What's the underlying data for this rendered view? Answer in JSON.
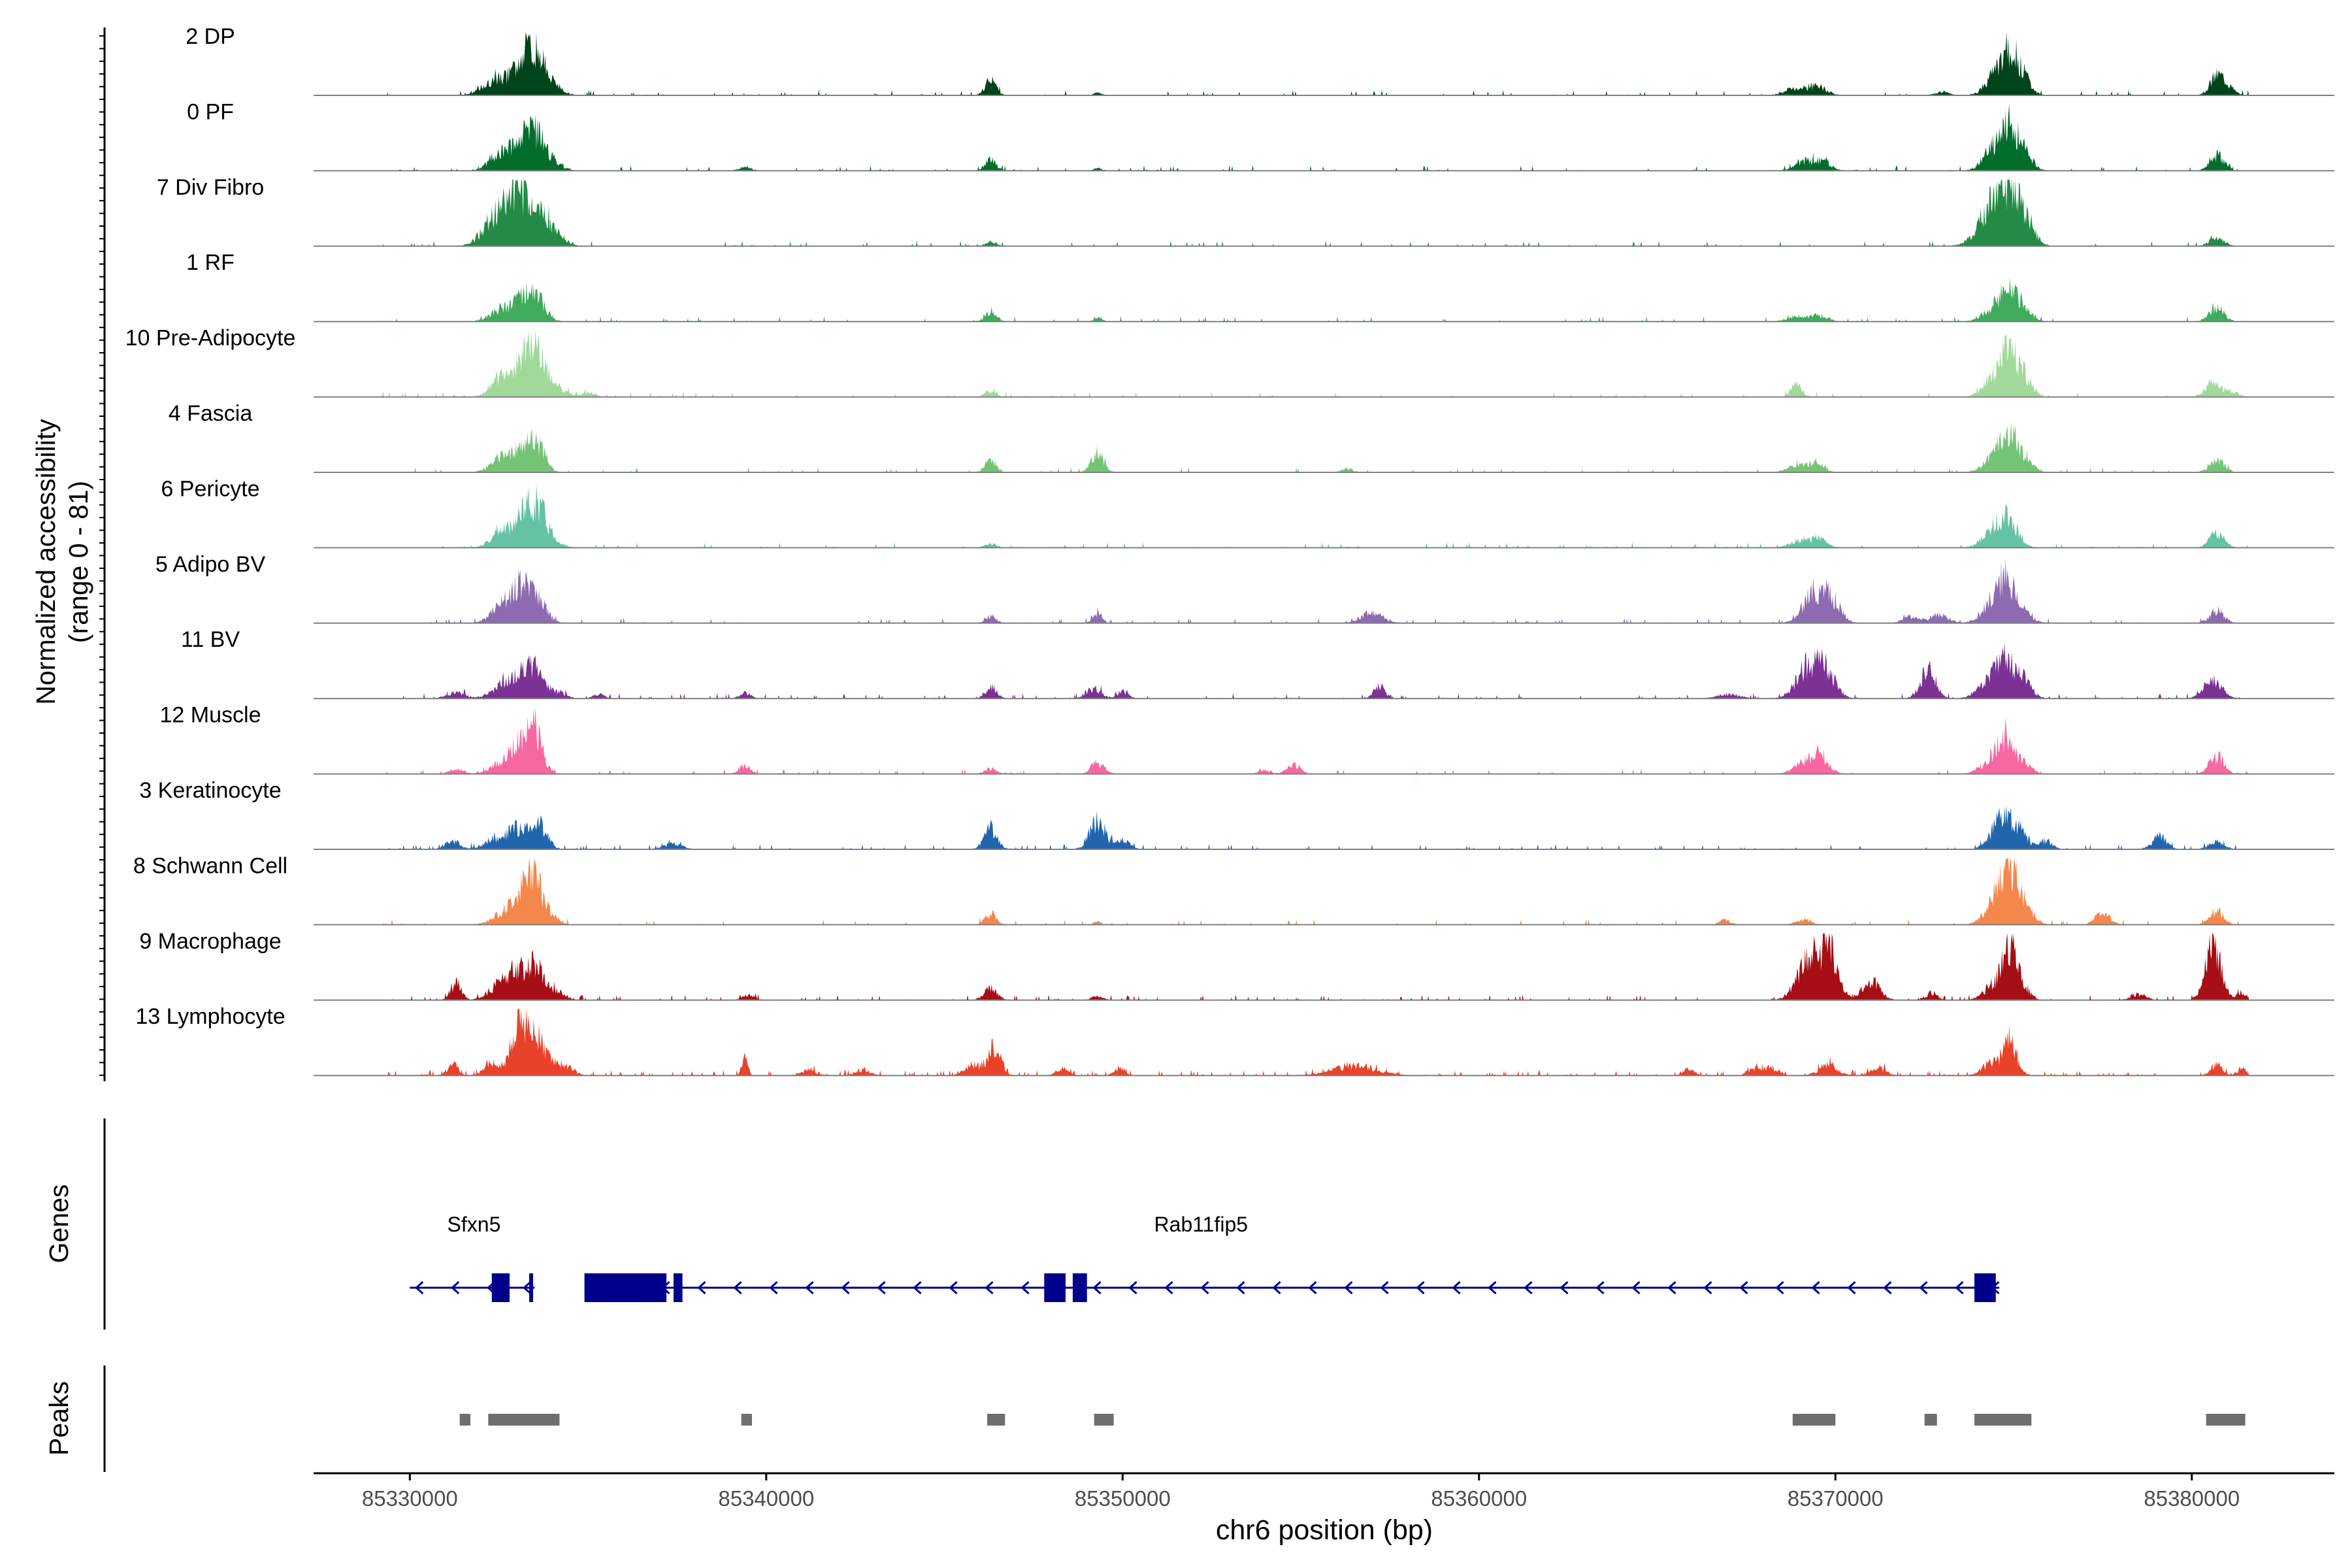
{
  "chart_data": {
    "type": "area",
    "title": "",
    "ylabel_line1": "Normalized accessibility",
    "ylabel_line2": "(range 0 - 81)",
    "ylim": [
      0,
      81
    ],
    "xlabel": "chr6 position (bp)",
    "xlim": [
      85327300,
      85384000
    ],
    "xticks": [
      85330000,
      85340000,
      85350000,
      85360000,
      85370000,
      85380000
    ],
    "xtick_labels": [
      "85330000",
      "85340000",
      "85350000",
      "85360000",
      "85370000",
      "85380000"
    ],
    "tracks": [
      {
        "label": "2 DP",
        "color": "#00441b",
        "noise": 0.04,
        "seed": 11,
        "peaks": [
          [
            85332400,
            350,
            22
          ],
          [
            85333100,
            260,
            40
          ],
          [
            85333500,
            250,
            48
          ],
          [
            85333900,
            300,
            18
          ],
          [
            85346300,
            150,
            22
          ],
          [
            85349300,
            100,
            4
          ],
          [
            85368900,
            300,
            10
          ],
          [
            85369500,
            250,
            12
          ],
          [
            85373000,
            200,
            4
          ],
          [
            85374500,
            280,
            28
          ],
          [
            85374900,
            220,
            55
          ],
          [
            85375300,
            200,
            22
          ],
          [
            85380700,
            200,
            25
          ],
          [
            85381000,
            200,
            10
          ]
        ]
      },
      {
        "label": "0 PF",
        "color": "#006d2c",
        "noise": 0.05,
        "seed": 12,
        "peaks": [
          [
            85332600,
            300,
            30
          ],
          [
            85333200,
            220,
            45
          ],
          [
            85333600,
            230,
            42
          ],
          [
            85334000,
            250,
            12
          ],
          [
            85339400,
            150,
            6
          ],
          [
            85346300,
            150,
            16
          ],
          [
            85349300,
            100,
            4
          ],
          [
            85369200,
            300,
            14
          ],
          [
            85369700,
            200,
            10
          ],
          [
            85374500,
            300,
            35
          ],
          [
            85374900,
            220,
            48
          ],
          [
            85375300,
            220,
            25
          ],
          [
            85380700,
            200,
            22
          ]
        ]
      },
      {
        "label": "7 Div Fibro",
        "color": "#238b45",
        "noise": 0.06,
        "seed": 13,
        "peaks": [
          [
            85332400,
            350,
            40
          ],
          [
            85333000,
            280,
            70
          ],
          [
            85333600,
            300,
            45
          ],
          [
            85334100,
            250,
            15
          ],
          [
            85346300,
            150,
            6
          ],
          [
            85374300,
            350,
            40
          ],
          [
            85374800,
            300,
            75
          ],
          [
            85375300,
            260,
            35
          ],
          [
            85380700,
            200,
            12
          ]
        ]
      },
      {
        "label": "1 RF",
        "color": "#41ab5d",
        "noise": 0.05,
        "seed": 14,
        "peaks": [
          [
            85332600,
            300,
            20
          ],
          [
            85333200,
            220,
            32
          ],
          [
            85333600,
            230,
            30
          ],
          [
            85346300,
            150,
            14
          ],
          [
            85349300,
            100,
            7
          ],
          [
            85369000,
            300,
            8
          ],
          [
            85369600,
            200,
            8
          ],
          [
            85374500,
            300,
            22
          ],
          [
            85374900,
            220,
            38
          ],
          [
            85375300,
            220,
            18
          ],
          [
            85380700,
            200,
            20
          ]
        ]
      },
      {
        "label": "10 Pre-Adipocyte",
        "color": "#a1d99b",
        "noise": 0.05,
        "seed": 15,
        "peaks": [
          [
            85332600,
            300,
            28
          ],
          [
            85333200,
            250,
            45
          ],
          [
            85333600,
            230,
            62
          ],
          [
            85334100,
            250,
            14
          ],
          [
            85335000,
            200,
            6
          ],
          [
            85346300,
            150,
            9
          ],
          [
            85368900,
            150,
            18
          ],
          [
            85374500,
            300,
            30
          ],
          [
            85374900,
            230,
            50
          ],
          [
            85375300,
            220,
            25
          ],
          [
            85380600,
            200,
            22
          ],
          [
            85381100,
            180,
            8
          ]
        ]
      },
      {
        "label": "4 Fascia",
        "color": "#74c476",
        "noise": 0.05,
        "seed": 16,
        "peaks": [
          [
            85332600,
            300,
            22
          ],
          [
            85333200,
            220,
            36
          ],
          [
            85333600,
            230,
            32
          ],
          [
            85346300,
            150,
            18
          ],
          [
            85349300,
            170,
            28
          ],
          [
            85356300,
            150,
            5
          ],
          [
            85369000,
            300,
            10
          ],
          [
            85369500,
            200,
            12
          ],
          [
            85374500,
            300,
            25
          ],
          [
            85374900,
            220,
            42
          ],
          [
            85375300,
            220,
            20
          ],
          [
            85380700,
            200,
            18
          ]
        ]
      },
      {
        "label": "6 Pericyte",
        "color": "#66c2a4",
        "noise": 0.04,
        "seed": 17,
        "peaks": [
          [
            85332600,
            300,
            24
          ],
          [
            85333200,
            230,
            42
          ],
          [
            85333600,
            230,
            55
          ],
          [
            85334000,
            250,
            10
          ],
          [
            85346300,
            150,
            6
          ],
          [
            85369100,
            300,
            12
          ],
          [
            85369600,
            200,
            10
          ],
          [
            85374500,
            320,
            28
          ],
          [
            85374900,
            250,
            32
          ],
          [
            85380700,
            200,
            22
          ]
        ]
      },
      {
        "label": "5 Adipo BV",
        "color": "#8c6bb1",
        "noise": 0.05,
        "seed": 18,
        "peaks": [
          [
            85332600,
            300,
            25
          ],
          [
            85333100,
            250,
            45
          ],
          [
            85333600,
            240,
            34
          ],
          [
            85346300,
            150,
            9
          ],
          [
            85349300,
            130,
            12
          ],
          [
            85357000,
            300,
            15
          ],
          [
            85369400,
            300,
            42
          ],
          [
            85369900,
            250,
            30
          ],
          [
            85372100,
            200,
            10
          ],
          [
            85372900,
            250,
            12
          ],
          [
            85374400,
            300,
            25
          ],
          [
            85374800,
            250,
            55
          ],
          [
            85375300,
            220,
            15
          ],
          [
            85380700,
            200,
            18
          ]
        ]
      },
      {
        "label": "11 BV",
        "color": "#7b3294",
        "noise": 0.08,
        "seed": 19,
        "peaks": [
          [
            85331300,
            250,
            8
          ],
          [
            85332600,
            300,
            20
          ],
          [
            85333200,
            250,
            35
          ],
          [
            85333600,
            240,
            30
          ],
          [
            85334200,
            200,
            8
          ],
          [
            85335300,
            150,
            6
          ],
          [
            85339400,
            150,
            8
          ],
          [
            85346300,
            150,
            18
          ],
          [
            85349200,
            200,
            15
          ],
          [
            85350000,
            150,
            10
          ],
          [
            85357200,
            150,
            18
          ],
          [
            85367000,
            300,
            6
          ],
          [
            85369300,
            350,
            50
          ],
          [
            85369800,
            250,
            25
          ],
          [
            85372600,
            200,
            45
          ],
          [
            85374300,
            300,
            25
          ],
          [
            85374800,
            250,
            50
          ],
          [
            85375300,
            220,
            22
          ],
          [
            85380600,
            250,
            25
          ]
        ]
      },
      {
        "label": "12 Muscle",
        "color": "#f768a1",
        "noise": 0.05,
        "seed": 20,
        "peaks": [
          [
            85331300,
            200,
            6
          ],
          [
            85332600,
            300,
            16
          ],
          [
            85333100,
            250,
            35
          ],
          [
            85333500,
            220,
            62
          ],
          [
            85339400,
            150,
            12
          ],
          [
            85346300,
            150,
            8
          ],
          [
            85349300,
            170,
            18
          ],
          [
            85354000,
            150,
            6
          ],
          [
            85354800,
            180,
            14
          ],
          [
            85369200,
            300,
            18
          ],
          [
            85369600,
            220,
            22
          ],
          [
            85374400,
            300,
            20
          ],
          [
            85374800,
            230,
            45
          ],
          [
            85375300,
            200,
            15
          ],
          [
            85380700,
            200,
            25
          ]
        ]
      },
      {
        "label": "3 Keratinocyte",
        "color": "#2166ac",
        "noise": 0.07,
        "seed": 21,
        "peaks": [
          [
            85331200,
            200,
            12
          ],
          [
            85332400,
            300,
            15
          ],
          [
            85333000,
            220,
            30
          ],
          [
            85333600,
            230,
            38
          ],
          [
            85337400,
            250,
            8
          ],
          [
            85346300,
            180,
            30
          ],
          [
            85349300,
            220,
            40
          ],
          [
            85350000,
            200,
            12
          ],
          [
            85374700,
            300,
            45
          ],
          [
            85375200,
            220,
            20
          ],
          [
            85375900,
            180,
            12
          ],
          [
            85379100,
            200,
            18
          ],
          [
            85380700,
            200,
            12
          ]
        ]
      },
      {
        "label": "8 Schwann Cell",
        "color": "#f4874b",
        "noise": 0.04,
        "seed": 22,
        "peaks": [
          [
            85332600,
            300,
            15
          ],
          [
            85333100,
            250,
            35
          ],
          [
            85333500,
            230,
            62
          ],
          [
            85334000,
            200,
            12
          ],
          [
            85346300,
            150,
            16
          ],
          [
            85349300,
            100,
            4
          ],
          [
            85366900,
            150,
            7
          ],
          [
            85369100,
            200,
            8
          ],
          [
            85374500,
            300,
            30
          ],
          [
            85374900,
            250,
            75
          ],
          [
            85375400,
            200,
            18
          ],
          [
            85377500,
            200,
            16
          ],
          [
            85380700,
            200,
            18
          ]
        ]
      },
      {
        "label": "9 Macrophage",
        "color": "#a50f15",
        "noise": 0.1,
        "seed": 23,
        "peaks": [
          [
            85331300,
            150,
            25
          ],
          [
            85332500,
            300,
            20
          ],
          [
            85333000,
            250,
            35
          ],
          [
            85333500,
            240,
            48
          ],
          [
            85334100,
            250,
            12
          ],
          [
            85339500,
            150,
            8
          ],
          [
            85346300,
            180,
            18
          ],
          [
            85349300,
            150,
            6
          ],
          [
            85369200,
            300,
            55
          ],
          [
            85369800,
            250,
            75
          ],
          [
            85371000,
            250,
            25
          ],
          [
            85372700,
            150,
            10
          ],
          [
            85374400,
            250,
            20
          ],
          [
            85374900,
            200,
            80
          ],
          [
            85375300,
            180,
            15
          ],
          [
            85378500,
            200,
            8
          ],
          [
            85380600,
            220,
            78
          ],
          [
            85381400,
            150,
            10
          ]
        ]
      },
      {
        "label": "13 Lymphocyte",
        "color": "#e8432a",
        "noise": 0.12,
        "seed": 24,
        "peaks": [
          [
            85331200,
            150,
            16
          ],
          [
            85332300,
            200,
            20
          ],
          [
            85333100,
            240,
            81
          ],
          [
            85333600,
            260,
            45
          ],
          [
            85334300,
            250,
            15
          ],
          [
            85339400,
            80,
            25
          ],
          [
            85341200,
            200,
            8
          ],
          [
            85342700,
            200,
            8
          ],
          [
            85345800,
            220,
            15
          ],
          [
            85346400,
            180,
            40
          ],
          [
            85348300,
            150,
            10
          ],
          [
            85349900,
            150,
            10
          ],
          [
            85356500,
            600,
            14
          ],
          [
            85365900,
            150,
            10
          ],
          [
            85367700,
            150,
            10
          ],
          [
            85368200,
            200,
            12
          ],
          [
            85369800,
            250,
            15
          ],
          [
            85371200,
            200,
            12
          ],
          [
            85374400,
            250,
            18
          ],
          [
            85374900,
            200,
            45
          ],
          [
            85380700,
            150,
            18
          ],
          [
            85381400,
            120,
            10
          ]
        ]
      }
    ],
    "genes_label": "Genes",
    "genes": [
      {
        "name": "Sfxn5",
        "start": 85330000,
        "end": 85333500,
        "strand": "-",
        "exons": [
          [
            85332300,
            85332800
          ],
          [
            85333350,
            85333430
          ]
        ]
      },
      {
        "name": "Rab11fip5",
        "start": 85334900,
        "end": 85374600,
        "strand": "-",
        "exons": [
          [
            85334900,
            85337200
          ],
          [
            85337400,
            85337650
          ],
          [
            85347800,
            85348400
          ],
          [
            85348600,
            85349000
          ],
          [
            85373900,
            85374500
          ]
        ]
      }
    ],
    "peaks_label": "Peaks",
    "peak_regions": [
      [
        85331400,
        85331700
      ],
      [
        85332200,
        85334200
      ],
      [
        85339300,
        85339600
      ],
      [
        85346200,
        85346700
      ],
      [
        85349200,
        85349750
      ],
      [
        85368800,
        85370000
      ],
      [
        85372500,
        85372850
      ],
      [
        85373900,
        85375500
      ],
      [
        85380400,
        85381500
      ]
    ]
  }
}
